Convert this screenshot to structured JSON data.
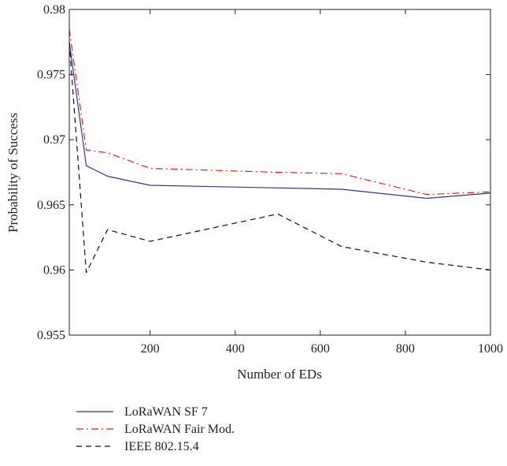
{
  "chart_data": {
    "type": "line",
    "title": "",
    "xlabel": "Number of EDs",
    "ylabel": "Probability of Success",
    "xlim": [
      10,
      1000
    ],
    "ylim": [
      0.955,
      0.98
    ],
    "xticks": [
      200,
      400,
      600,
      800,
      1000
    ],
    "xtick_labels": [
      "200",
      "400",
      "600",
      "800",
      "1000"
    ],
    "yticks": [
      0.955,
      0.96,
      0.965,
      0.97,
      0.975,
      0.98
    ],
    "ytick_labels": [
      "0.955",
      "0.96",
      "0.965",
      "0.97",
      "0.975",
      "0.98"
    ],
    "grid": false,
    "legend_position": "below-left",
    "series": [
      {
        "name": "LoRaWAN SF 7",
        "color": "#2b3a8f",
        "dash": "solid",
        "x": [
          10,
          50,
          100,
          200,
          500,
          650,
          850,
          1000
        ],
        "y": [
          0.9775,
          0.968,
          0.9672,
          0.9665,
          0.9663,
          0.9662,
          0.9655,
          0.9659
        ]
      },
      {
        "name": "LoRaWAN Fair Mod.",
        "color": "#e0241b",
        "dash": "dashdot",
        "x": [
          10,
          50,
          100,
          200,
          500,
          650,
          850,
          1000
        ],
        "y": [
          0.9785,
          0.9692,
          0.969,
          0.9678,
          0.9675,
          0.9674,
          0.9658,
          0.966
        ]
      },
      {
        "name": "IEEE 802.15.4",
        "color": "#111111",
        "dash": "dashed",
        "x": [
          10,
          50,
          100,
          200,
          500,
          650,
          850,
          1000
        ],
        "y": [
          0.9775,
          0.9598,
          0.9631,
          0.9622,
          0.9643,
          0.9618,
          0.9606,
          0.96
        ]
      }
    ]
  }
}
